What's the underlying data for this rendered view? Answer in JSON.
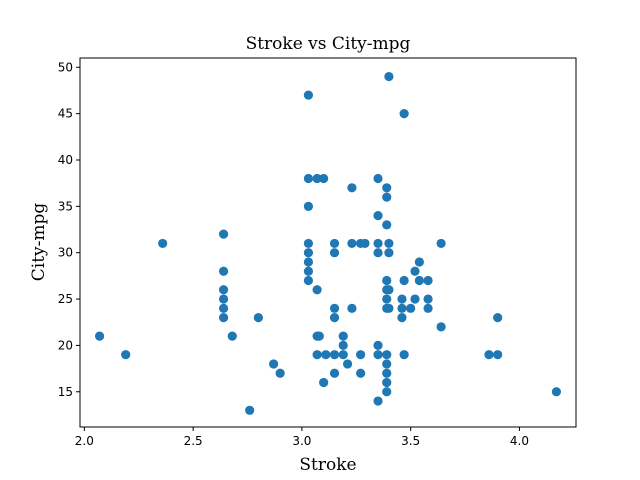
{
  "chart_data": {
    "type": "scatter",
    "title": "Stroke vs City-mpg",
    "xlabel": "Stroke",
    "ylabel": "City-mpg",
    "xlim": [
      1.98,
      4.26
    ],
    "ylim": [
      11.2,
      51.0
    ],
    "x_ticks": [
      "2.0",
      "2.5",
      "3.0",
      "3.5",
      "4.0"
    ],
    "y_ticks": [
      "15",
      "20",
      "25",
      "30",
      "35",
      "40",
      "45",
      "50"
    ],
    "grid": false,
    "marker_color": "#1f77b4",
    "points": [
      [
        2.07,
        21
      ],
      [
        2.19,
        19
      ],
      [
        2.36,
        31
      ],
      [
        2.64,
        32
      ],
      [
        2.64,
        28
      ],
      [
        2.64,
        26
      ],
      [
        2.64,
        25
      ],
      [
        2.64,
        24
      ],
      [
        2.64,
        23
      ],
      [
        2.68,
        21
      ],
      [
        2.76,
        13
      ],
      [
        2.8,
        23
      ],
      [
        2.87,
        18
      ],
      [
        2.9,
        17
      ],
      [
        3.03,
        47
      ],
      [
        3.03,
        38
      ],
      [
        3.03,
        35
      ],
      [
        3.03,
        31
      ],
      [
        3.03,
        30
      ],
      [
        3.03,
        29
      ],
      [
        3.03,
        28
      ],
      [
        3.03,
        27
      ],
      [
        3.07,
        38
      ],
      [
        3.07,
        26
      ],
      [
        3.07,
        21
      ],
      [
        3.07,
        19
      ],
      [
        3.08,
        21
      ],
      [
        3.1,
        38
      ],
      [
        3.1,
        16
      ],
      [
        3.11,
        19
      ],
      [
        3.15,
        31
      ],
      [
        3.15,
        30
      ],
      [
        3.15,
        24
      ],
      [
        3.15,
        23
      ],
      [
        3.15,
        19
      ],
      [
        3.15,
        17
      ],
      [
        3.19,
        21
      ],
      [
        3.19,
        20
      ],
      [
        3.19,
        19
      ],
      [
        3.21,
        18
      ],
      [
        3.23,
        37
      ],
      [
        3.23,
        31
      ],
      [
        3.23,
        24
      ],
      [
        3.27,
        31
      ],
      [
        3.27,
        19
      ],
      [
        3.27,
        17
      ],
      [
        3.29,
        31
      ],
      [
        3.35,
        38
      ],
      [
        3.35,
        34
      ],
      [
        3.35,
        31
      ],
      [
        3.35,
        30
      ],
      [
        3.35,
        20
      ],
      [
        3.35,
        19
      ],
      [
        3.35,
        14
      ],
      [
        3.39,
        37
      ],
      [
        3.39,
        36
      ],
      [
        3.39,
        33
      ],
      [
        3.39,
        27
      ],
      [
        3.39,
        26
      ],
      [
        3.39,
        25
      ],
      [
        3.39,
        24
      ],
      [
        3.39,
        19
      ],
      [
        3.39,
        18
      ],
      [
        3.39,
        17
      ],
      [
        3.39,
        16
      ],
      [
        3.39,
        15
      ],
      [
        3.4,
        49
      ],
      [
        3.4,
        31
      ],
      [
        3.4,
        30
      ],
      [
        3.4,
        26
      ],
      [
        3.4,
        24
      ],
      [
        3.46,
        25
      ],
      [
        3.46,
        24
      ],
      [
        3.46,
        23
      ],
      [
        3.47,
        45
      ],
      [
        3.47,
        27
      ],
      [
        3.47,
        19
      ],
      [
        3.5,
        24
      ],
      [
        3.52,
        28
      ],
      [
        3.52,
        25
      ],
      [
        3.54,
        29
      ],
      [
        3.54,
        27
      ],
      [
        3.58,
        27
      ],
      [
        3.58,
        25
      ],
      [
        3.58,
        24
      ],
      [
        3.64,
        31
      ],
      [
        3.64,
        22
      ],
      [
        3.86,
        19
      ],
      [
        3.9,
        23
      ],
      [
        3.9,
        19
      ],
      [
        4.17,
        15
      ]
    ]
  }
}
